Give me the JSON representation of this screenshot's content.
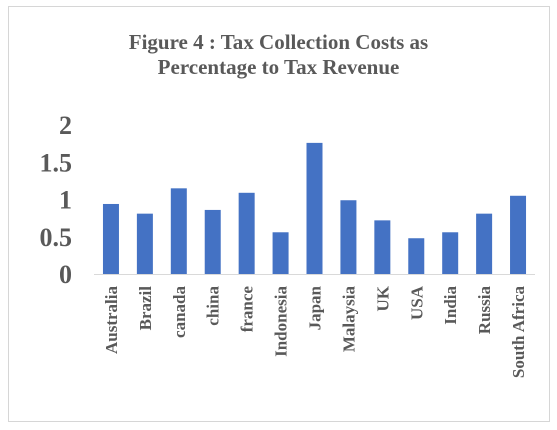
{
  "chart_data": {
    "type": "bar",
    "title_lines": [
      "Figure 4 : Tax Collection Costs as",
      "Percentage to Tax Revenue"
    ],
    "xlabel": "",
    "ylabel": "",
    "categories": [
      "Australia",
      "Brazil",
      "canada",
      "china",
      "france",
      "Indonesia",
      "Japan",
      "Malaysia",
      "UK",
      "USA",
      "India",
      "Russia",
      "South Africa"
    ],
    "series": [
      {
        "values": [
          0.94,
          0.81,
          1.15,
          0.86,
          1.09,
          0.56,
          1.76,
          0.99,
          0.72,
          0.48,
          0.56,
          0.81,
          1.05
        ]
      }
    ],
    "ylim": [
      0,
      2
    ],
    "yticks": [
      "0",
      "0.5",
      "1",
      "1.5",
      "2"
    ],
    "grid": false,
    "legend": "none",
    "bar_color": "#4472c4",
    "axis_color": "#d9d9d9",
    "text_color": "#595959"
  }
}
